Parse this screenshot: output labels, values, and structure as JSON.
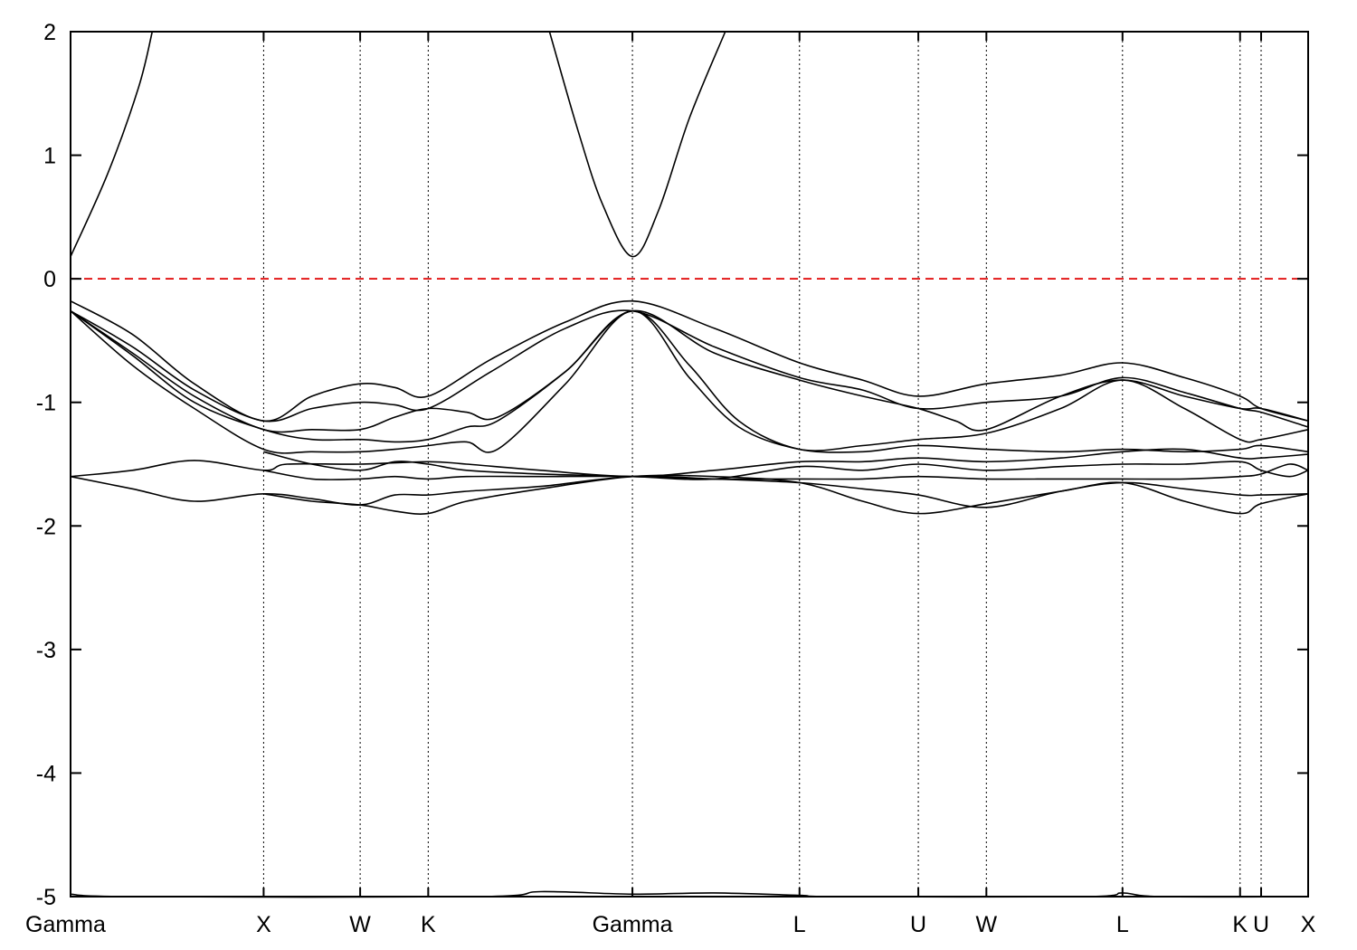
{
  "chart_data": {
    "type": "line",
    "title": "",
    "xlabel": "",
    "ylabel": "",
    "ylim": [
      -5,
      2
    ],
    "xlim": [
      0,
      1
    ],
    "yticks": [
      2,
      1,
      0,
      -1,
      -2,
      -3,
      -4,
      -5
    ],
    "ytick_labels": [
      "2",
      "1",
      "0",
      "-1",
      "-2",
      "-3",
      "-4",
      "-5"
    ],
    "kpoints": [
      {
        "label": "Gamma",
        "x": 0.0
      },
      {
        "label": "X",
        "x": 0.156
      },
      {
        "label": "W",
        "x": 0.234
      },
      {
        "label": "K",
        "x": 0.289
      },
      {
        "label": "Gamma",
        "x": 0.454
      },
      {
        "label": "L",
        "x": 0.589
      },
      {
        "label": "U",
        "x": 0.685
      },
      {
        "label": "W",
        "x": 0.74
      },
      {
        "label": "L",
        "x": 0.85
      },
      {
        "label": "K",
        "x": 0.945
      },
      {
        "label": "U",
        "x": 0.962
      },
      {
        "label": "X",
        "x": 1.0
      }
    ],
    "fermi_level": 0,
    "colors": {
      "bands": "#000000",
      "fermi": "#e00000",
      "kpoint_lines": "#000000"
    },
    "series": [
      {
        "values": [
          [
            0.0,
            0.18
          ],
          [
            0.03,
            0.85
          ],
          [
            0.055,
            1.55
          ],
          [
            0.066,
            2.0
          ]
        ]
      },
      {
        "values": [
          [
            0.387,
            2.0
          ],
          [
            0.41,
            1.2
          ],
          [
            0.43,
            0.6
          ],
          [
            0.454,
            0.18
          ],
          [
            0.475,
            0.55
          ],
          [
            0.5,
            1.3
          ],
          [
            0.529,
            2.0
          ]
        ]
      },
      {
        "values": [
          [
            0.0,
            -0.18
          ],
          [
            0.05,
            -0.45
          ],
          [
            0.1,
            -0.85
          ],
          [
            0.156,
            -1.15
          ],
          [
            0.195,
            -0.95
          ],
          [
            0.234,
            -0.85
          ],
          [
            0.262,
            -0.88
          ],
          [
            0.289,
            -0.95
          ],
          [
            0.34,
            -0.65
          ],
          [
            0.4,
            -0.35
          ],
          [
            0.454,
            -0.18
          ],
          [
            0.52,
            -0.4
          ],
          [
            0.589,
            -0.68
          ],
          [
            0.64,
            -0.82
          ],
          [
            0.685,
            -0.95
          ],
          [
            0.74,
            -0.85
          ],
          [
            0.8,
            -0.78
          ],
          [
            0.85,
            -0.68
          ],
          [
            0.9,
            -0.8
          ],
          [
            0.945,
            -0.95
          ],
          [
            0.962,
            -1.05
          ],
          [
            1.0,
            -1.15
          ]
        ]
      },
      {
        "values": [
          [
            0.0,
            -0.26
          ],
          [
            0.05,
            -0.55
          ],
          [
            0.1,
            -0.9
          ],
          [
            0.156,
            -1.15
          ],
          [
            0.195,
            -1.05
          ],
          [
            0.234,
            -1.0
          ],
          [
            0.262,
            -1.02
          ],
          [
            0.289,
            -1.05
          ],
          [
            0.34,
            -0.75
          ],
          [
            0.4,
            -0.4
          ],
          [
            0.454,
            -0.26
          ],
          [
            0.52,
            -0.55
          ],
          [
            0.589,
            -0.8
          ],
          [
            0.64,
            -0.9
          ],
          [
            0.685,
            -1.05
          ],
          [
            0.74,
            -1.0
          ],
          [
            0.8,
            -0.95
          ],
          [
            0.85,
            -0.8
          ],
          [
            0.9,
            -0.92
          ],
          [
            0.945,
            -1.05
          ],
          [
            0.962,
            -1.08
          ],
          [
            1.0,
            -1.2
          ]
        ]
      },
      {
        "values": [
          [
            0.0,
            -0.26
          ],
          [
            0.05,
            -0.6
          ],
          [
            0.1,
            -0.95
          ],
          [
            0.156,
            -1.22
          ],
          [
            0.195,
            -1.22
          ],
          [
            0.234,
            -1.22
          ],
          [
            0.262,
            -1.12
          ],
          [
            0.289,
            -1.05
          ],
          [
            0.32,
            -1.08
          ],
          [
            0.345,
            -1.12
          ],
          [
            0.4,
            -0.75
          ],
          [
            0.454,
            -0.26
          ],
          [
            0.52,
            -0.6
          ],
          [
            0.589,
            -0.82
          ],
          [
            0.64,
            -0.95
          ],
          [
            0.685,
            -1.05
          ],
          [
            0.715,
            -1.15
          ],
          [
            0.74,
            -1.22
          ],
          [
            0.8,
            -0.95
          ],
          [
            0.85,
            -0.82
          ],
          [
            0.9,
            -0.95
          ],
          [
            0.945,
            -1.05
          ],
          [
            0.962,
            -1.05
          ],
          [
            1.0,
            -1.15
          ]
        ]
      },
      {
        "values": [
          [
            0.0,
            -0.26
          ],
          [
            0.05,
            -0.62
          ],
          [
            0.1,
            -1.0
          ],
          [
            0.156,
            -1.22
          ],
          [
            0.195,
            -1.3
          ],
          [
            0.234,
            -1.3
          ],
          [
            0.262,
            -1.32
          ],
          [
            0.289,
            -1.3
          ],
          [
            0.32,
            -1.2
          ],
          [
            0.345,
            -1.15
          ],
          [
            0.4,
            -0.75
          ],
          [
            0.454,
            -0.26
          ],
          [
            0.5,
            -0.7
          ],
          [
            0.54,
            -1.15
          ],
          [
            0.589,
            -1.38
          ],
          [
            0.64,
            -1.35
          ],
          [
            0.685,
            -1.3
          ],
          [
            0.74,
            -1.25
          ],
          [
            0.8,
            -1.05
          ],
          [
            0.85,
            -0.82
          ],
          [
            0.9,
            -1.05
          ],
          [
            0.945,
            -1.3
          ],
          [
            0.962,
            -1.3
          ],
          [
            1.0,
            -1.22
          ]
        ]
      },
      {
        "values": [
          [
            0.0,
            -0.26
          ],
          [
            0.05,
            -0.7
          ],
          [
            0.1,
            -1.05
          ],
          [
            0.156,
            -1.38
          ],
          [
            0.195,
            -1.4
          ],
          [
            0.234,
            -1.4
          ],
          [
            0.262,
            -1.38
          ],
          [
            0.289,
            -1.35
          ],
          [
            0.32,
            -1.32
          ],
          [
            0.345,
            -1.38
          ],
          [
            0.4,
            -0.85
          ],
          [
            0.454,
            -0.26
          ],
          [
            0.5,
            -0.8
          ],
          [
            0.54,
            -1.2
          ],
          [
            0.589,
            -1.38
          ],
          [
            0.64,
            -1.4
          ],
          [
            0.685,
            -1.35
          ],
          [
            0.74,
            -1.38
          ],
          [
            0.8,
            -1.4
          ],
          [
            0.85,
            -1.38
          ],
          [
            0.9,
            -1.4
          ],
          [
            0.945,
            -1.38
          ],
          [
            0.962,
            -1.35
          ],
          [
            1.0,
            -1.4
          ]
        ]
      },
      {
        "values": [
          [
            0.0,
            -1.6
          ],
          [
            0.05,
            -1.55
          ],
          [
            0.1,
            -1.47
          ],
          [
            0.156,
            -1.55
          ],
          [
            0.175,
            -1.5
          ],
          [
            0.234,
            -1.5
          ],
          [
            0.289,
            -1.48
          ],
          [
            0.32,
            -1.5
          ],
          [
            0.38,
            -1.55
          ],
          [
            0.454,
            -1.6
          ],
          [
            0.52,
            -1.55
          ],
          [
            0.589,
            -1.48
          ],
          [
            0.64,
            -1.48
          ],
          [
            0.685,
            -1.45
          ],
          [
            0.74,
            -1.48
          ],
          [
            0.8,
            -1.45
          ],
          [
            0.85,
            -1.4
          ],
          [
            0.9,
            -1.38
          ],
          [
            0.945,
            -1.45
          ],
          [
            0.962,
            -1.45
          ],
          [
            1.0,
            -1.42
          ]
        ]
      },
      {
        "values": [
          [
            0.0,
            -1.6
          ],
          [
            0.05,
            -1.7
          ],
          [
            0.1,
            -1.8
          ],
          [
            0.156,
            -1.74
          ],
          [
            0.195,
            -1.78
          ],
          [
            0.234,
            -1.83
          ],
          [
            0.262,
            -1.75
          ],
          [
            0.289,
            -1.75
          ],
          [
            0.32,
            -1.72
          ],
          [
            0.38,
            -1.68
          ],
          [
            0.454,
            -1.6
          ],
          [
            0.52,
            -1.62
          ],
          [
            0.589,
            -1.65
          ],
          [
            0.64,
            -1.7
          ],
          [
            0.685,
            -1.75
          ],
          [
            0.74,
            -1.85
          ],
          [
            0.8,
            -1.72
          ],
          [
            0.85,
            -1.65
          ],
          [
            0.9,
            -1.7
          ],
          [
            0.945,
            -1.75
          ],
          [
            0.962,
            -1.75
          ],
          [
            1.0,
            -1.74
          ]
        ]
      },
      {
        "values": [
          [
            0.156,
            -1.4
          ],
          [
            0.195,
            -1.5
          ],
          [
            0.234,
            -1.55
          ],
          [
            0.262,
            -1.48
          ],
          [
            0.289,
            -1.5
          ],
          [
            0.32,
            -1.55
          ],
          [
            0.38,
            -1.58
          ],
          [
            0.454,
            -1.6
          ],
          [
            0.52,
            -1.62
          ],
          [
            0.589,
            -1.52
          ],
          [
            0.64,
            -1.55
          ],
          [
            0.685,
            -1.5
          ],
          [
            0.74,
            -1.55
          ],
          [
            0.8,
            -1.52
          ],
          [
            0.85,
            -1.5
          ],
          [
            0.9,
            -1.5
          ],
          [
            0.945,
            -1.48
          ],
          [
            0.962,
            -1.55
          ],
          [
            0.985,
            -1.6
          ],
          [
            1.0,
            -1.55
          ]
        ]
      },
      {
        "values": [
          [
            0.156,
            -1.55
          ],
          [
            0.195,
            -1.62
          ],
          [
            0.234,
            -1.62
          ],
          [
            0.262,
            -1.6
          ],
          [
            0.289,
            -1.62
          ],
          [
            0.32,
            -1.6
          ],
          [
            0.38,
            -1.6
          ],
          [
            0.454,
            -1.6
          ],
          [
            0.52,
            -1.62
          ],
          [
            0.589,
            -1.62
          ],
          [
            0.64,
            -1.62
          ],
          [
            0.685,
            -1.6
          ],
          [
            0.74,
            -1.62
          ],
          [
            0.8,
            -1.62
          ],
          [
            0.85,
            -1.62
          ],
          [
            0.9,
            -1.62
          ],
          [
            0.945,
            -1.6
          ],
          [
            0.962,
            -1.58
          ],
          [
            0.985,
            -1.5
          ],
          [
            1.0,
            -1.55
          ]
        ]
      },
      {
        "values": [
          [
            0.156,
            -1.74
          ],
          [
            0.195,
            -1.8
          ],
          [
            0.234,
            -1.83
          ],
          [
            0.262,
            -1.88
          ],
          [
            0.289,
            -1.9
          ],
          [
            0.32,
            -1.8
          ],
          [
            0.38,
            -1.7
          ],
          [
            0.454,
            -1.6
          ],
          [
            0.52,
            -1.6
          ],
          [
            0.589,
            -1.65
          ],
          [
            0.64,
            -1.8
          ],
          [
            0.685,
            -1.9
          ],
          [
            0.74,
            -1.82
          ],
          [
            0.8,
            -1.72
          ],
          [
            0.85,
            -1.65
          ],
          [
            0.9,
            -1.8
          ],
          [
            0.945,
            -1.9
          ],
          [
            0.962,
            -1.82
          ],
          [
            1.0,
            -1.74
          ]
        ]
      },
      {
        "values": [
          [
            0.0,
            -4.98
          ],
          [
            0.05,
            -5.0
          ],
          [
            0.33,
            -5.0
          ],
          [
            0.38,
            -4.96
          ],
          [
            0.454,
            -4.98
          ],
          [
            0.52,
            -4.97
          ],
          [
            0.589,
            -4.99
          ],
          [
            0.62,
            -5.0
          ],
          [
            0.82,
            -5.0
          ],
          [
            0.85,
            -4.97
          ],
          [
            0.88,
            -5.0
          ],
          [
            1.0,
            -5.0
          ]
        ]
      }
    ]
  }
}
